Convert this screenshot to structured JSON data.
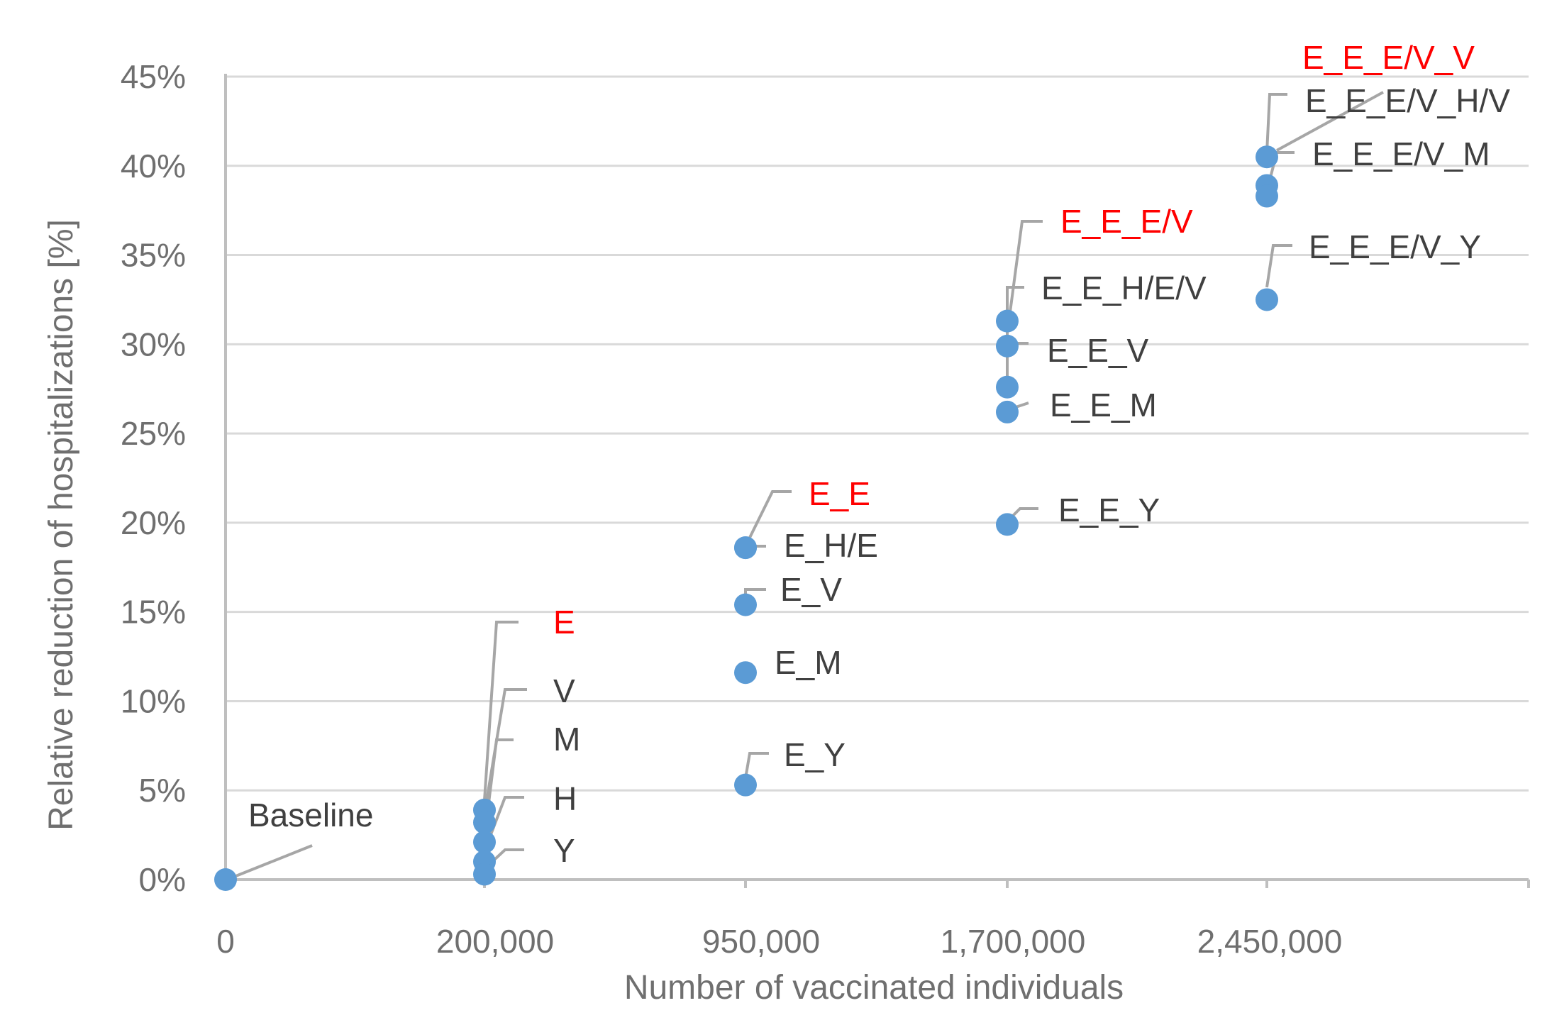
{
  "chart_data": {
    "type": "scatter",
    "xlabel": "Number of vaccinated individuals",
    "ylabel": "Relative reduction of hospitalizations [%]",
    "x_categories": [
      "0",
      "200,000",
      "950,000",
      "1,700,000",
      "2,450,000"
    ],
    "yticks": [
      "0%",
      "5%",
      "10%",
      "15%",
      "20%",
      "25%",
      "30%",
      "35%",
      "40%",
      "45%"
    ],
    "ylim": [
      0,
      45
    ],
    "grid": true,
    "colors": {
      "point": "#5b9bd5",
      "highlight_label": "#ff0000",
      "label": "#404040",
      "leader": "#a6a6a6"
    },
    "points": [
      {
        "x": "0",
        "y": 0.0,
        "label": "Baseline",
        "highlight": false
      },
      {
        "x": "200,000",
        "y": 3.9,
        "label": "E",
        "highlight": true
      },
      {
        "x": "200,000",
        "y": 3.2,
        "label": "V",
        "highlight": false
      },
      {
        "x": "200,000",
        "y": 2.1,
        "label": "M",
        "highlight": false
      },
      {
        "x": "200,000",
        "y": 1.0,
        "label": "H",
        "highlight": false
      },
      {
        "x": "200,000",
        "y": 0.3,
        "label": "Y",
        "highlight": false
      },
      {
        "x": "950,000",
        "y": 18.6,
        "label": "E_E",
        "highlight": true
      },
      {
        "x": "950,000",
        "y": 18.6,
        "label": "E_H/E",
        "highlight": false
      },
      {
        "x": "950,000",
        "y": 15.4,
        "label": "E_V",
        "highlight": false
      },
      {
        "x": "950,000",
        "y": 11.6,
        "label": "E_M",
        "highlight": false
      },
      {
        "x": "950,000",
        "y": 5.3,
        "label": "E_Y",
        "highlight": false
      },
      {
        "x": "1,700,000",
        "y": 31.3,
        "label": "E_E_E/V",
        "highlight": true
      },
      {
        "x": "1,700,000",
        "y": 27.6,
        "label": "E_E_H/E/V",
        "highlight": false
      },
      {
        "x": "1,700,000",
        "y": 29.9,
        "label": "E_E_V",
        "highlight": false
      },
      {
        "x": "1,700,000",
        "y": 26.2,
        "label": "E_E_M",
        "highlight": false
      },
      {
        "x": "1,700,000",
        "y": 19.9,
        "label": "E_E_Y",
        "highlight": false
      },
      {
        "x": "2,450,000",
        "y": 40.5,
        "label": "E_E_E/V_V",
        "highlight": true
      },
      {
        "x": "2,450,000",
        "y": 38.9,
        "label": "E_E_E/V_H/V",
        "highlight": false
      },
      {
        "x": "2,450,000",
        "y": 38.3,
        "label": "E_E_E/V_M",
        "highlight": false
      },
      {
        "x": "2,450,000",
        "y": 32.5,
        "label": "E_E_E/V_Y",
        "highlight": false
      }
    ]
  }
}
